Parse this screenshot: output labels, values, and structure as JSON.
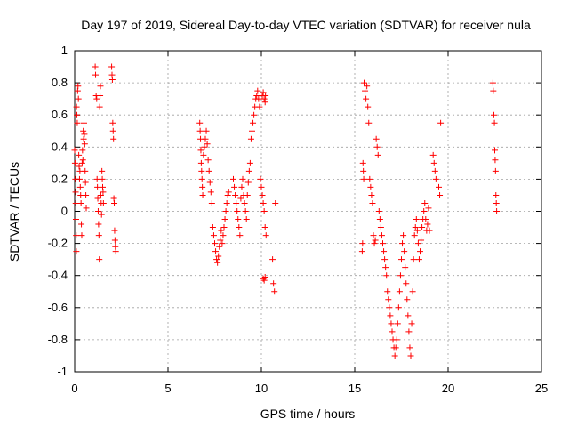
{
  "chart_data": {
    "type": "scatter",
    "title": "Day 197 of 2019, Sidereal Day-to-day VTEC variation (SDTVAR) for receiver nula",
    "xlabel": "GPS time / hours",
    "ylabel": "SDTVAR / TECUs",
    "xlim": [
      0,
      25
    ],
    "ylim": [
      -1,
      1
    ],
    "x_ticks": [
      0,
      5,
      10,
      15,
      20,
      25
    ],
    "x_tick_labels": [
      "0",
      "5",
      "10",
      "15",
      "20",
      "25"
    ],
    "y_ticks": [
      -1,
      -0.8,
      -0.6,
      -0.4,
      -0.2,
      0,
      0.2,
      0.4,
      0.6,
      0.8,
      1
    ],
    "y_tick_labels": [
      "-1",
      "-0.8",
      "-0.6",
      "-0.4",
      "-0.2",
      "0",
      "0.2",
      "0.4",
      "0.6",
      "0.8",
      "1"
    ],
    "grid": true,
    "marker": "+",
    "series": [
      {
        "name": "SDTVAR",
        "color": "#ff0000",
        "points": [
          [
            0.0,
            0.38
          ],
          [
            0.02,
            0.3
          ],
          [
            0.04,
            0.2
          ],
          [
            0.05,
            0.12
          ],
          [
            0.06,
            0.05
          ],
          [
            0.07,
            -0.05
          ],
          [
            0.08,
            -0.15
          ],
          [
            0.09,
            -0.25
          ],
          [
            0.1,
            0.65
          ],
          [
            0.12,
            0.6
          ],
          [
            0.14,
            0.55
          ],
          [
            0.16,
            0.75
          ],
          [
            0.18,
            0.78
          ],
          [
            0.2,
            0.7
          ],
          [
            0.22,
            0.35
          ],
          [
            0.24,
            0.28
          ],
          [
            0.26,
            0.2
          ],
          [
            0.28,
            0.25
          ],
          [
            0.3,
            0.15
          ],
          [
            0.32,
            0.1
          ],
          [
            0.34,
            0.05
          ],
          [
            0.36,
            -0.08
          ],
          [
            0.38,
            -0.15
          ],
          [
            0.4,
            0.3
          ],
          [
            0.42,
            0.38
          ],
          [
            0.44,
            0.32
          ],
          [
            0.46,
            0.5
          ],
          [
            0.48,
            0.45
          ],
          [
            0.5,
            0.55
          ],
          [
            0.52,
            0.48
          ],
          [
            0.54,
            0.42
          ],
          [
            0.56,
            0.25
          ],
          [
            0.58,
            0.18
          ],
          [
            0.6,
            0.1
          ],
          [
            0.62,
            0.02
          ],
          [
            1.1,
            0.9
          ],
          [
            1.12,
            0.85
          ],
          [
            1.15,
            0.72
          ],
          [
            1.18,
            0.7
          ],
          [
            1.2,
            0.2
          ],
          [
            1.22,
            0.15
          ],
          [
            1.24,
            0.08
          ],
          [
            1.26,
            0.0
          ],
          [
            1.28,
            -0.08
          ],
          [
            1.3,
            -0.15
          ],
          [
            1.32,
            -0.3
          ],
          [
            1.34,
            0.65
          ],
          [
            1.36,
            0.72
          ],
          [
            1.38,
            0.78
          ],
          [
            1.4,
            0.1
          ],
          [
            1.42,
            0.05
          ],
          [
            1.44,
            -0.02
          ],
          [
            1.46,
            0.25
          ],
          [
            1.48,
            0.2
          ],
          [
            1.5,
            0.15
          ],
          [
            1.52,
            0.12
          ],
          [
            1.54,
            0.05
          ],
          [
            1.98,
            0.9
          ],
          [
            2.0,
            0.85
          ],
          [
            2.02,
            0.82
          ],
          [
            2.04,
            0.55
          ],
          [
            2.06,
            0.5
          ],
          [
            2.08,
            0.45
          ],
          [
            2.1,
            0.08
          ],
          [
            2.12,
            0.05
          ],
          [
            2.14,
            -0.12
          ],
          [
            2.16,
            -0.18
          ],
          [
            2.18,
            -0.22
          ],
          [
            2.2,
            -0.25
          ],
          [
            6.7,
            0.55
          ],
          [
            6.72,
            0.5
          ],
          [
            6.74,
            0.45
          ],
          [
            6.76,
            0.38
          ],
          [
            6.78,
            0.3
          ],
          [
            6.8,
            0.25
          ],
          [
            6.82,
            0.2
          ],
          [
            6.84,
            0.15
          ],
          [
            6.86,
            0.1
          ],
          [
            6.9,
            0.35
          ],
          [
            6.95,
            0.4
          ],
          [
            7.0,
            0.45
          ],
          [
            7.05,
            0.5
          ],
          [
            7.1,
            0.42
          ],
          [
            7.15,
            0.32
          ],
          [
            7.2,
            0.25
          ],
          [
            7.25,
            0.18
          ],
          [
            7.3,
            0.12
          ],
          [
            7.35,
            0.05
          ],
          [
            7.4,
            -0.1
          ],
          [
            7.45,
            -0.15
          ],
          [
            7.5,
            -0.2
          ],
          [
            7.55,
            -0.25
          ],
          [
            7.6,
            -0.3
          ],
          [
            7.65,
            -0.32
          ],
          [
            7.7,
            -0.28
          ],
          [
            7.75,
            -0.22
          ],
          [
            7.8,
            -0.18
          ],
          [
            7.85,
            -0.12
          ],
          [
            7.9,
            -0.2
          ],
          [
            7.95,
            -0.15
          ],
          [
            8.0,
            -0.1
          ],
          [
            8.05,
            -0.05
          ],
          [
            8.1,
            0.0
          ],
          [
            8.15,
            0.05
          ],
          [
            8.2,
            0.1
          ],
          [
            8.25,
            0.12
          ],
          [
            8.5,
            0.2
          ],
          [
            8.55,
            0.15
          ],
          [
            8.6,
            0.1
          ],
          [
            8.65,
            0.05
          ],
          [
            8.7,
            0.0
          ],
          [
            8.75,
            -0.05
          ],
          [
            8.8,
            -0.1
          ],
          [
            8.85,
            -0.15
          ],
          [
            8.9,
            0.08
          ],
          [
            8.95,
            0.15
          ],
          [
            9.0,
            0.2
          ],
          [
            9.05,
            0.1
          ],
          [
            9.1,
            0.05
          ],
          [
            9.15,
            0.0
          ],
          [
            9.2,
            -0.05
          ],
          [
            9.25,
            0.1
          ],
          [
            9.3,
            0.18
          ],
          [
            9.35,
            0.25
          ],
          [
            9.4,
            0.3
          ],
          [
            9.45,
            0.45
          ],
          [
            9.5,
            0.5
          ],
          [
            9.55,
            0.55
          ],
          [
            9.6,
            0.6
          ],
          [
            9.65,
            0.65
          ],
          [
            9.7,
            0.7
          ],
          [
            9.75,
            0.72
          ],
          [
            9.8,
            0.75
          ],
          [
            9.85,
            0.7
          ],
          [
            9.9,
            0.65
          ],
          [
            9.95,
            0.2
          ],
          [
            10.0,
            0.15
          ],
          [
            10.05,
            0.1
          ],
          [
            10.1,
            0.05
          ],
          [
            10.15,
            0.0
          ],
          [
            10.2,
            -0.1
          ],
          [
            10.25,
            -0.15
          ],
          [
            10.05,
            0.72
          ],
          [
            10.1,
            0.74
          ],
          [
            10.15,
            0.7
          ],
          [
            10.2,
            0.68
          ],
          [
            10.22,
            0.72
          ],
          [
            10.1,
            -0.42
          ],
          [
            10.15,
            -0.43
          ],
          [
            10.2,
            -0.41
          ],
          [
            10.6,
            -0.3
          ],
          [
            10.65,
            -0.45
          ],
          [
            10.7,
            -0.5
          ],
          [
            10.75,
            0.05
          ],
          [
            15.4,
            -0.25
          ],
          [
            15.42,
            -0.2
          ],
          [
            15.44,
            0.3
          ],
          [
            15.46,
            0.25
          ],
          [
            15.48,
            0.2
          ],
          [
            15.5,
            0.8
          ],
          [
            15.55,
            0.75
          ],
          [
            15.6,
            0.7
          ],
          [
            15.65,
            0.78
          ],
          [
            15.7,
            0.65
          ],
          [
            15.75,
            0.55
          ],
          [
            15.8,
            0.2
          ],
          [
            15.85,
            0.15
          ],
          [
            15.9,
            0.1
          ],
          [
            15.95,
            0.05
          ],
          [
            16.0,
            -0.15
          ],
          [
            16.05,
            -0.2
          ],
          [
            16.1,
            -0.18
          ],
          [
            16.15,
            0.45
          ],
          [
            16.2,
            0.4
          ],
          [
            16.25,
            0.35
          ],
          [
            16.3,
            0.0
          ],
          [
            16.35,
            -0.05
          ],
          [
            16.4,
            -0.1
          ],
          [
            16.45,
            -0.15
          ],
          [
            16.5,
            -0.2
          ],
          [
            16.55,
            -0.25
          ],
          [
            16.6,
            -0.3
          ],
          [
            16.65,
            -0.35
          ],
          [
            16.7,
            -0.4
          ],
          [
            16.75,
            -0.5
          ],
          [
            16.8,
            -0.55
          ],
          [
            16.85,
            -0.6
          ],
          [
            16.9,
            -0.65
          ],
          [
            16.95,
            -0.7
          ],
          [
            17.0,
            -0.75
          ],
          [
            17.05,
            -0.8
          ],
          [
            17.1,
            -0.85
          ],
          [
            17.15,
            -0.9
          ],
          [
            17.2,
            -0.85
          ],
          [
            17.25,
            -0.8
          ],
          [
            17.3,
            -0.7
          ],
          [
            17.35,
            -0.6
          ],
          [
            17.4,
            -0.5
          ],
          [
            17.45,
            -0.4
          ],
          [
            17.5,
            -0.3
          ],
          [
            17.55,
            -0.2
          ],
          [
            17.6,
            -0.15
          ],
          [
            17.65,
            -0.25
          ],
          [
            17.7,
            -0.35
          ],
          [
            17.75,
            -0.45
          ],
          [
            17.8,
            -0.55
          ],
          [
            17.85,
            -0.65
          ],
          [
            17.9,
            -0.75
          ],
          [
            17.95,
            -0.85
          ],
          [
            18.0,
            -0.9
          ],
          [
            18.05,
            -0.7
          ],
          [
            18.1,
            -0.5
          ],
          [
            18.15,
            -0.3
          ],
          [
            18.2,
            -0.15
          ],
          [
            18.25,
            -0.1
          ],
          [
            18.3,
            -0.05
          ],
          [
            18.35,
            -0.12
          ],
          [
            18.4,
            -0.2
          ],
          [
            18.45,
            -0.3
          ],
          [
            18.5,
            -0.25
          ],
          [
            18.55,
            -0.18
          ],
          [
            18.6,
            -0.1
          ],
          [
            18.65,
            -0.05
          ],
          [
            18.7,
            0.0
          ],
          [
            18.75,
            0.05
          ],
          [
            18.8,
            -0.05
          ],
          [
            18.85,
            -0.12
          ],
          [
            18.9,
            -0.08
          ],
          [
            18.95,
            0.02
          ],
          [
            19.0,
            -0.12
          ],
          [
            19.2,
            0.35
          ],
          [
            19.25,
            0.3
          ],
          [
            19.3,
            0.25
          ],
          [
            19.35,
            0.2
          ],
          [
            19.6,
            0.55
          ],
          [
            19.5,
            0.15
          ],
          [
            19.55,
            0.1
          ],
          [
            22.4,
            0.8
          ],
          [
            22.42,
            0.75
          ],
          [
            22.45,
            0.6
          ],
          [
            22.48,
            0.55
          ],
          [
            22.5,
            0.38
          ],
          [
            22.52,
            0.32
          ],
          [
            22.54,
            0.25
          ],
          [
            22.56,
            0.1
          ],
          [
            22.58,
            0.05
          ],
          [
            22.6,
            0.0
          ]
        ]
      }
    ]
  }
}
